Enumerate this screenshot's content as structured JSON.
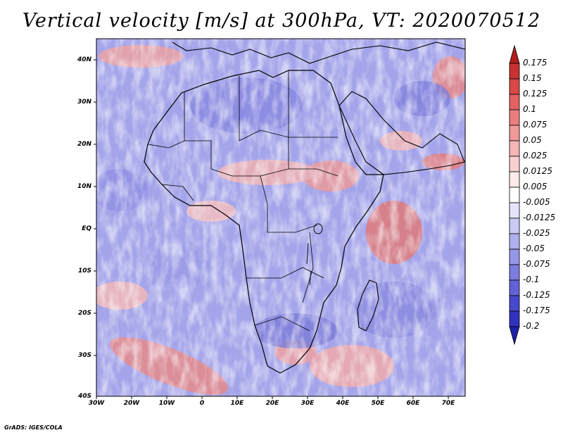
{
  "title": "Vertical velocity [m/s] at 300hPa, VT: 2020070512",
  "credit": "GrADS: IGES/COLA",
  "latitude_labels": [
    "40N",
    "30N",
    "20N",
    "10N",
    "EQ",
    "10S",
    "20S",
    "30S",
    "40S"
  ],
  "longitude_labels": [
    "30W",
    "20W",
    "10W",
    "0",
    "10E",
    "20E",
    "30E",
    "40E",
    "50E",
    "60E",
    "70E"
  ],
  "colorbar": {
    "labels": [
      "0.175",
      "0.15",
      "0.125",
      "0.1",
      "0.075",
      "0.05",
      "0.025",
      "0.0125",
      "0.005",
      "-0.005",
      "-0.0125",
      "-0.025",
      "-0.05",
      "-0.075",
      "-0.1",
      "-0.125",
      "-0.175",
      "-0.2"
    ],
    "colors": [
      "#b01c1c",
      "#c83232",
      "#d94848",
      "#e26262",
      "#ea7e7e",
      "#f09a9a",
      "#f5b6b6",
      "#f9d0d0",
      "#fcebeb",
      "#ffffff",
      "#e4e4fb",
      "#cacaf5",
      "#b0b0ee",
      "#9696e6",
      "#7c7cdf",
      "#6262d6",
      "#4848cc",
      "#3232bd",
      "#1f1fa8"
    ]
  },
  "colors": {
    "ascent": "#c83232",
    "descent": "#3232bd",
    "background_field": "#9c9ce8"
  }
}
